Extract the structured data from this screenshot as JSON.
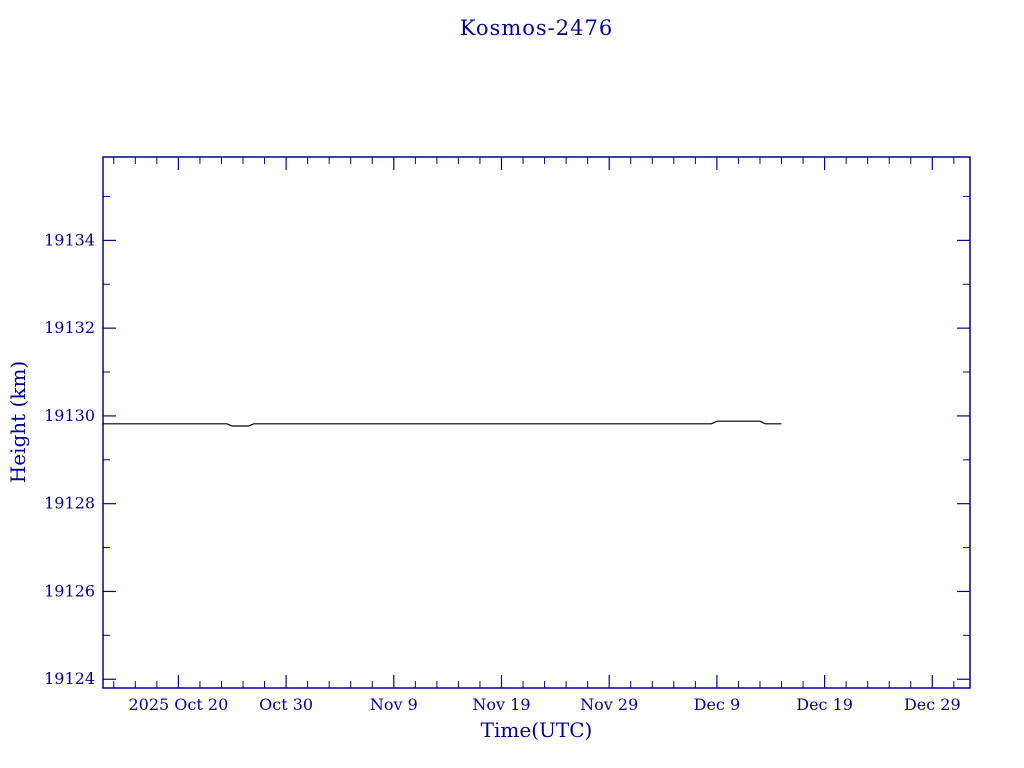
{
  "page": {
    "background": "#ffffff"
  },
  "labels": {
    "title": "Kosmos-2476",
    "xlabel": "Time(UTC)",
    "ylabel": "Height (km)"
  },
  "chart_data": {
    "type": "line",
    "title": "Kosmos-2476",
    "xlabel": "Time(UTC)",
    "ylabel": "Height (km)",
    "axis_color": "#000099",
    "line_color": "#000000",
    "grid": false,
    "legend": false,
    "x_unit": "days since 2025 Oct 13 (UTC)",
    "xlim": [
      0,
      80.5
    ],
    "ylim": [
      19123.8,
      19135.9
    ],
    "x_major_ticks": [
      {
        "pos": 7,
        "label": "2025 Oct 20"
      },
      {
        "pos": 17,
        "label": "Oct 30"
      },
      {
        "pos": 27,
        "label": "Nov 9"
      },
      {
        "pos": 37,
        "label": "Nov 19"
      },
      {
        "pos": 47,
        "label": "Nov 29"
      },
      {
        "pos": 57,
        "label": "Dec 9"
      },
      {
        "pos": 67,
        "label": "Dec 19"
      },
      {
        "pos": 77,
        "label": "Dec 29"
      }
    ],
    "x_minor_ticks": [
      1,
      3,
      5,
      9,
      11,
      13,
      15,
      19,
      21,
      23,
      25,
      29,
      31,
      33,
      35,
      39,
      41,
      43,
      45,
      49,
      51,
      53,
      55,
      59,
      61,
      63,
      65,
      69,
      71,
      73,
      75,
      79
    ],
    "y_major_ticks": [
      19124,
      19126,
      19128,
      19130,
      19132,
      19134
    ],
    "y_minor_ticks": [
      19125,
      19127,
      19129,
      19131,
      19133,
      19135
    ],
    "series": [
      {
        "name": "height",
        "points": [
          [
            0.0,
            19129.82
          ],
          [
            11.5,
            19129.82
          ],
          [
            12.0,
            19129.77
          ],
          [
            13.5,
            19129.77
          ],
          [
            14.0,
            19129.82
          ],
          [
            56.5,
            19129.82
          ],
          [
            57.0,
            19129.88
          ],
          [
            61.0,
            19129.88
          ],
          [
            61.5,
            19129.82
          ],
          [
            63.0,
            19129.82
          ]
        ]
      }
    ]
  }
}
